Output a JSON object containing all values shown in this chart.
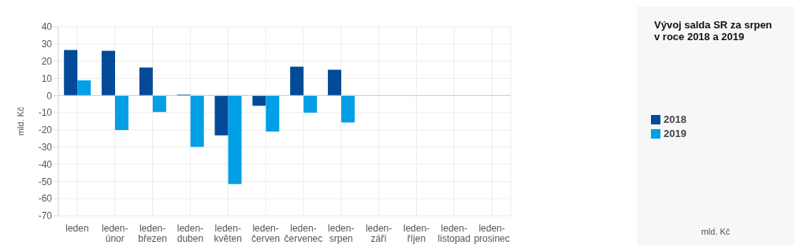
{
  "chart_data": {
    "type": "bar",
    "title": "Vývoj salda SR za srpen\nv roce 2018 a 2019",
    "ylabel": "mld. Kč",
    "annotations": [
      "mld. Kč"
    ],
    "categories": [
      "leden",
      "leden-únor",
      "leden-březen",
      "leden-duben",
      "leden-květen",
      "leden-červen",
      "leden-červenec",
      "leden-srpen",
      "leden-září",
      "leden-říjen",
      "leden-listopad",
      "leden-prosinec"
    ],
    "series": [
      {
        "name": "2018",
        "color": "#034a98",
        "values": [
          26.5,
          26,
          16.3,
          0.5,
          -23.2,
          -6,
          16.8,
          15,
          null,
          null,
          null,
          null
        ]
      },
      {
        "name": "2019",
        "color": "#009fe6",
        "values": [
          8.8,
          -20.1,
          -9.6,
          -29.9,
          -51.5,
          -21,
          -10,
          -15.7,
          null,
          null,
          null,
          null
        ]
      }
    ],
    "ylim": [
      -70,
      40
    ],
    "yticks": [
      -70,
      -60,
      -50,
      -40,
      -30,
      -20,
      -10,
      0,
      10,
      20,
      30,
      40
    ],
    "grid": true,
    "legend": "right"
  }
}
